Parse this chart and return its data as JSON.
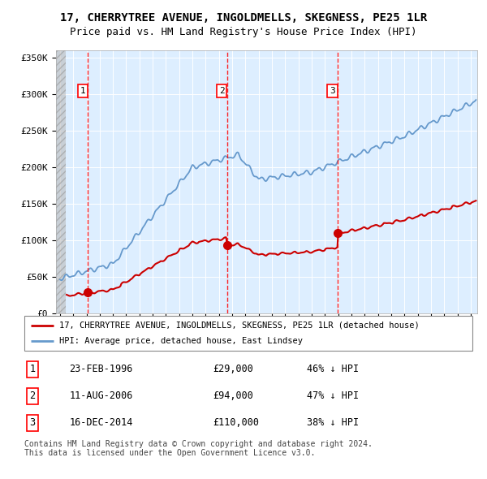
{
  "title": "17, CHERRYTREE AVENUE, INGOLDMELLS, SKEGNESS, PE25 1LR",
  "subtitle": "Price paid vs. HM Land Registry's House Price Index (HPI)",
  "xlim_start": 1993.7,
  "xlim_end": 2025.5,
  "ylim": [
    0,
    360000
  ],
  "yticks": [
    0,
    50000,
    100000,
    150000,
    200000,
    250000,
    300000,
    350000
  ],
  "ytick_labels": [
    "£0",
    "£50K",
    "£100K",
    "£150K",
    "£200K",
    "£250K",
    "£300K",
    "£350K"
  ],
  "hatch_end_year": 1994.42,
  "sale_points": [
    {
      "year": 1996.12,
      "price": 29000,
      "label": "1"
    },
    {
      "year": 2006.61,
      "price": 94000,
      "label": "2"
    },
    {
      "year": 2014.96,
      "price": 110000,
      "label": "3"
    }
  ],
  "sale_table": [
    {
      "num": "1",
      "date": "23-FEB-1996",
      "price": "£29,000",
      "pct": "46% ↓ HPI"
    },
    {
      "num": "2",
      "date": "11-AUG-2006",
      "price": "£94,000",
      "pct": "47% ↓ HPI"
    },
    {
      "num": "3",
      "date": "16-DEC-2014",
      "price": "£110,000",
      "pct": "38% ↓ HPI"
    }
  ],
  "legend_property": "17, CHERRYTREE AVENUE, INGOLDMELLS, SKEGNESS, PE25 1LR (detached house)",
  "legend_hpi": "HPI: Average price, detached house, East Lindsey",
  "footer": "Contains HM Land Registry data © Crown copyright and database right 2024.\nThis data is licensed under the Open Government Licence v3.0.",
  "property_color": "#cc0000",
  "hpi_color": "#6699cc",
  "bg_chart": "#ddeeff",
  "grid_color": "#ffffff"
}
